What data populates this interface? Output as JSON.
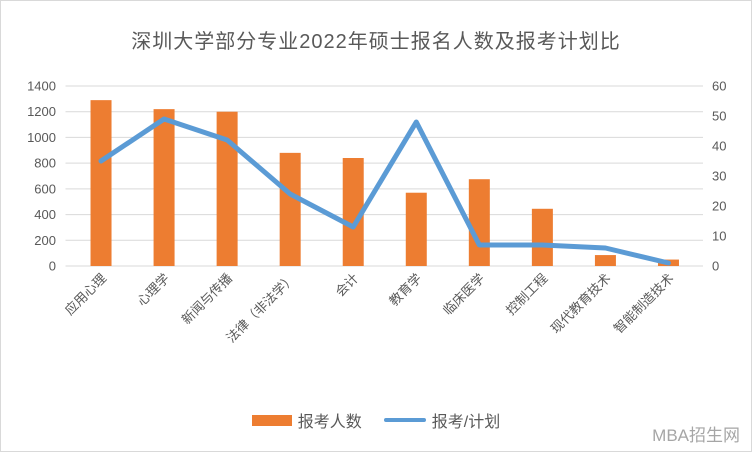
{
  "title": "深圳大学部分专业2022年硕士报名人数及报考计划比",
  "watermark": "MBA招生网",
  "legend": {
    "bar_label": "报考人数",
    "line_label": "报考/计划"
  },
  "colors": {
    "bar": "#ED7D31",
    "line": "#5B9BD5",
    "grid": "#D9D9D9",
    "axis_text": "#595959",
    "title_text": "#595959",
    "watermark_text": "#A6A6A6"
  },
  "chart_data": {
    "type": "bar",
    "subtype": "bar+line dual-axis combo",
    "title": "深圳大学部分专业2022年硕士报名人数及报考计划比",
    "categories": [
      "应用心理",
      "心理学",
      "新闻与传播",
      "法律（非法学）",
      "会计",
      "教育学",
      "临床医学",
      "控制工程",
      "现代教育技术",
      "智能制造技术"
    ],
    "series": [
      {
        "name": "报考人数",
        "type": "bar",
        "axis": "left",
        "values": [
          1290,
          1220,
          1200,
          880,
          840,
          570,
          675,
          445,
          85,
          50
        ]
      },
      {
        "name": "报考/计划",
        "type": "line",
        "axis": "right",
        "values": [
          35,
          49,
          42,
          24,
          13,
          48,
          7,
          7,
          6,
          1
        ]
      }
    ],
    "left_axis": {
      "min": 0,
      "max": 1400,
      "step": 200,
      "tick_labels": [
        "0",
        "200",
        "400",
        "600",
        "800",
        "1000",
        "1200",
        "1400"
      ]
    },
    "right_axis": {
      "min": 0,
      "max": 60,
      "step": 10,
      "tick_labels": [
        "0",
        "10",
        "20",
        "30",
        "40",
        "50",
        "60"
      ]
    },
    "xlabel": "",
    "ylabel": "",
    "grid": true,
    "legend_position": "bottom"
  }
}
